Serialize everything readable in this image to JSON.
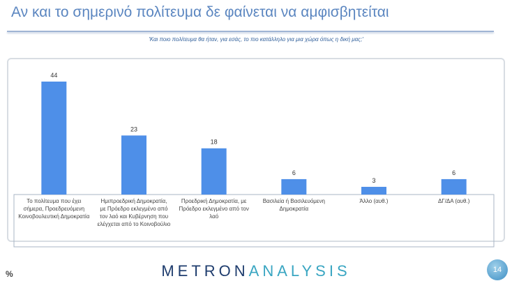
{
  "title": "Αν και το σημερινό πολίτευμα δε φαίνεται να αμφισβητείται",
  "subtitle": "'Και ποιο πολίτευμα θα ήταν, για εσάς, το πιο κατάλληλο για μια χώρα όπως η δική μας;'",
  "unit": "%",
  "logo": {
    "part1": "METRON",
    "part2": "ANALYSIS"
  },
  "page_number": "14",
  "colors": {
    "bar": "#4e8fe8",
    "title": "#5b86c0"
  },
  "chart_data": {
    "type": "bar",
    "categories": [
      [
        "Το πολίτευμα που έχει",
        "σήμερα, Προεδρευόμενη",
        "Κοινοβουλευτική Δημοκρατία"
      ],
      [
        "Ημιπροεδρική Δημοκρατία,",
        "με Πρόεδρο εκλεγμένο από",
        "τον λαό και Κυβέρνηση που",
        "ελέγχεται από το Κοινοβούλιο"
      ],
      [
        "Προεδρική Δημοκρατία, με",
        "Πρόεδρο εκλεγμένο από τον",
        "λαό"
      ],
      [
        "Βασιλεία ή Βασιλευόμενη",
        "Δημοκρατία"
      ],
      [
        "Άλλο (αυθ.)"
      ],
      [
        "ΔΓ/ΔΑ (αυθ.)"
      ]
    ],
    "values": [
      44,
      23,
      18,
      6,
      3,
      6
    ],
    "data_labels": [
      "44",
      "23",
      "18",
      "6",
      "3",
      "6"
    ],
    "ylim": [
      0,
      50
    ],
    "grid": false
  }
}
